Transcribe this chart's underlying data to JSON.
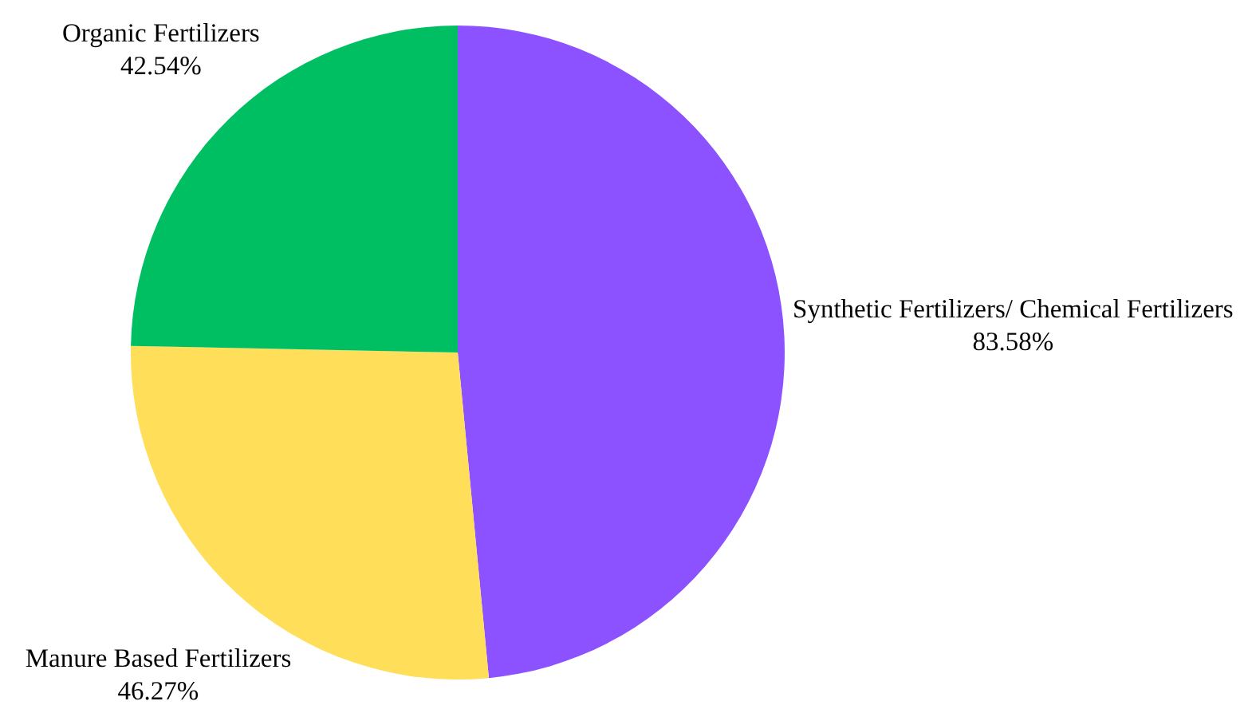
{
  "chart_data": {
    "type": "pie",
    "categories": [
      "Synthetic Fertilizers/ Chemical Fertilizers",
      "Manure Based Fertilizers",
      "Organic Fertilizers"
    ],
    "values": [
      83.58,
      46.27,
      42.54
    ],
    "colors": [
      "#8c52ff",
      "#ffde59",
      "#00bf63"
    ],
    "value_labels": [
      "83.58%",
      "46.27%",
      "42.54%"
    ]
  }
}
